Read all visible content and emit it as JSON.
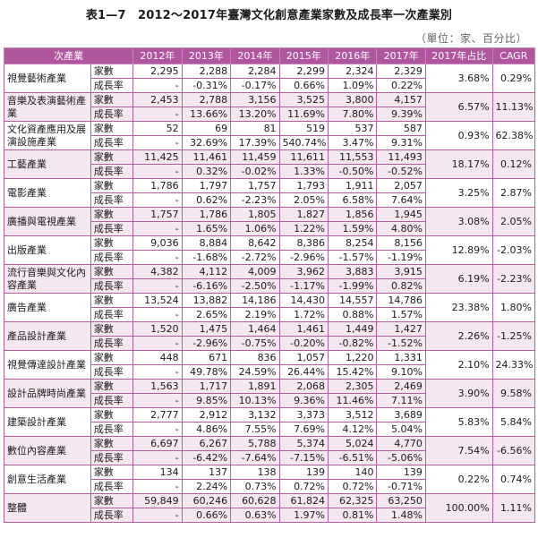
{
  "title": "表1—7　2012～2017年臺灣文化創意產業家數及成長率一次產業別",
  "unit": "（單位：家、百分比）",
  "columns": [
    "次產業",
    "2012年",
    "2013年",
    "2014年",
    "2015年",
    "2016年",
    "2017年",
    "2017年占比",
    "CAGR"
  ],
  "metrics": [
    "家數",
    "成長率"
  ],
  "rows": [
    {
      "industry": "視覺藝術產業",
      "counts": [
        "2,295",
        "2,288",
        "2,284",
        "2,299",
        "2,324",
        "2,329"
      ],
      "growth": [
        "-",
        "-0.31%",
        "-0.17%",
        "0.66%",
        "1.09%",
        "0.22%"
      ],
      "share": "3.68%",
      "cagr": "0.29%"
    },
    {
      "industry": "音樂及表演藝術產業",
      "counts": [
        "2,453",
        "2,788",
        "3,156",
        "3,525",
        "3,800",
        "4,157"
      ],
      "growth": [
        "-",
        "13.66%",
        "13.20%",
        "11.69%",
        "7.80%",
        "9.39%"
      ],
      "share": "6.57%",
      "cagr": "11.13%"
    },
    {
      "industry": "文化資產應用及展演設施產業",
      "counts": [
        "52",
        "69",
        "81",
        "519",
        "537",
        "587"
      ],
      "growth": [
        "-",
        "32.69%",
        "17.39%",
        "540.74%",
        "3.47%",
        "9.31%"
      ],
      "share": "0.93%",
      "cagr": "62.38%"
    },
    {
      "industry": "工藝產業",
      "counts": [
        "11,425",
        "11,461",
        "11,459",
        "11,611",
        "11,553",
        "11,493"
      ],
      "growth": [
        "-",
        "0.32%",
        "-0.02%",
        "1.33%",
        "-0.50%",
        "-0.52%"
      ],
      "share": "18.17%",
      "cagr": "0.12%"
    },
    {
      "industry": "電影產業",
      "counts": [
        "1,786",
        "1,797",
        "1,757",
        "1,793",
        "1,911",
        "2,057"
      ],
      "growth": [
        "-",
        "0.62%",
        "-2.23%",
        "2.05%",
        "6.58%",
        "7.64%"
      ],
      "share": "3.25%",
      "cagr": "2.87%"
    },
    {
      "industry": "廣播與電視產業",
      "counts": [
        "1,757",
        "1,786",
        "1,805",
        "1,827",
        "1,856",
        "1,945"
      ],
      "growth": [
        "-",
        "1.65%",
        "1.06%",
        "1.22%",
        "1.59%",
        "4.80%"
      ],
      "share": "3.08%",
      "cagr": "2.05%"
    },
    {
      "industry": "出版產業",
      "counts": [
        "9,036",
        "8,884",
        "8,642",
        "8,386",
        "8,254",
        "8,156"
      ],
      "growth": [
        "-",
        "-1.68%",
        "-2.72%",
        "-2.96%",
        "-1.57%",
        "-1.19%"
      ],
      "share": "12.89%",
      "cagr": "-2.03%"
    },
    {
      "industry": "流行音樂與文化內容產業",
      "counts": [
        "4,382",
        "4,112",
        "4,009",
        "3,962",
        "3,883",
        "3,915"
      ],
      "growth": [
        "-",
        "-6.16%",
        "-2.50%",
        "-1.17%",
        "-1.99%",
        "0.82%"
      ],
      "share": "6.19%",
      "cagr": "-2.23%"
    },
    {
      "industry": "廣告產業",
      "counts": [
        "13,524",
        "13,882",
        "14,186",
        "14,430",
        "14,557",
        "14,786"
      ],
      "growth": [
        "-",
        "2.65%",
        "2.19%",
        "1.72%",
        "0.88%",
        "1.57%"
      ],
      "share": "23.38%",
      "cagr": "1.80%"
    },
    {
      "industry": "產品設計產業",
      "counts": [
        "1,520",
        "1,475",
        "1,464",
        "1,461",
        "1,449",
        "1,427"
      ],
      "growth": [
        "-",
        "-2.96%",
        "-0.75%",
        "-0.20%",
        "-0.82%",
        "-1.52%"
      ],
      "share": "2.26%",
      "cagr": "-1.25%"
    },
    {
      "industry": "視覺傳達設計產業",
      "counts": [
        "448",
        "671",
        "836",
        "1,057",
        "1,220",
        "1,331"
      ],
      "growth": [
        "-",
        "49.78%",
        "24.59%",
        "26.44%",
        "15.42%",
        "9.10%"
      ],
      "share": "2.10%",
      "cagr": "24.33%"
    },
    {
      "industry": "設計品牌時尚產業",
      "counts": [
        "1,563",
        "1,717",
        "1,891",
        "2,068",
        "2,305",
        "2,469"
      ],
      "growth": [
        "-",
        "9.85%",
        "10.13%",
        "9.36%",
        "11.46%",
        "7.11%"
      ],
      "share": "3.90%",
      "cagr": "9.58%"
    },
    {
      "industry": "建築設計產業",
      "counts": [
        "2,777",
        "2,912",
        "3,132",
        "3,373",
        "3,512",
        "3,689"
      ],
      "growth": [
        "-",
        "4.86%",
        "7.55%",
        "7.69%",
        "4.12%",
        "5.04%"
      ],
      "share": "5.83%",
      "cagr": "5.84%"
    },
    {
      "industry": "數位內容產業",
      "counts": [
        "6,697",
        "6,267",
        "5,788",
        "5,374",
        "5,024",
        "4,770"
      ],
      "growth": [
        "-",
        "-6.42%",
        "-7.64%",
        "-7.15%",
        "-6.51%",
        "-5.06%"
      ],
      "share": "7.54%",
      "cagr": "-6.56%"
    },
    {
      "industry": "創意生活產業",
      "counts": [
        "134",
        "137",
        "138",
        "139",
        "140",
        "139"
      ],
      "growth": [
        "-",
        "2.24%",
        "0.73%",
        "0.72%",
        "0.72%",
        "-0.71%"
      ],
      "share": "0.22%",
      "cagr": "0.74%"
    },
    {
      "industry": "整體",
      "counts": [
        "59,849",
        "60,246",
        "60,628",
        "61,824",
        "62,325",
        "63,250"
      ],
      "growth": [
        "-",
        "0.66%",
        "0.63%",
        "1.97%",
        "0.81%",
        "1.48%"
      ],
      "share": "100.00%",
      "cagr": "1.11%"
    }
  ]
}
